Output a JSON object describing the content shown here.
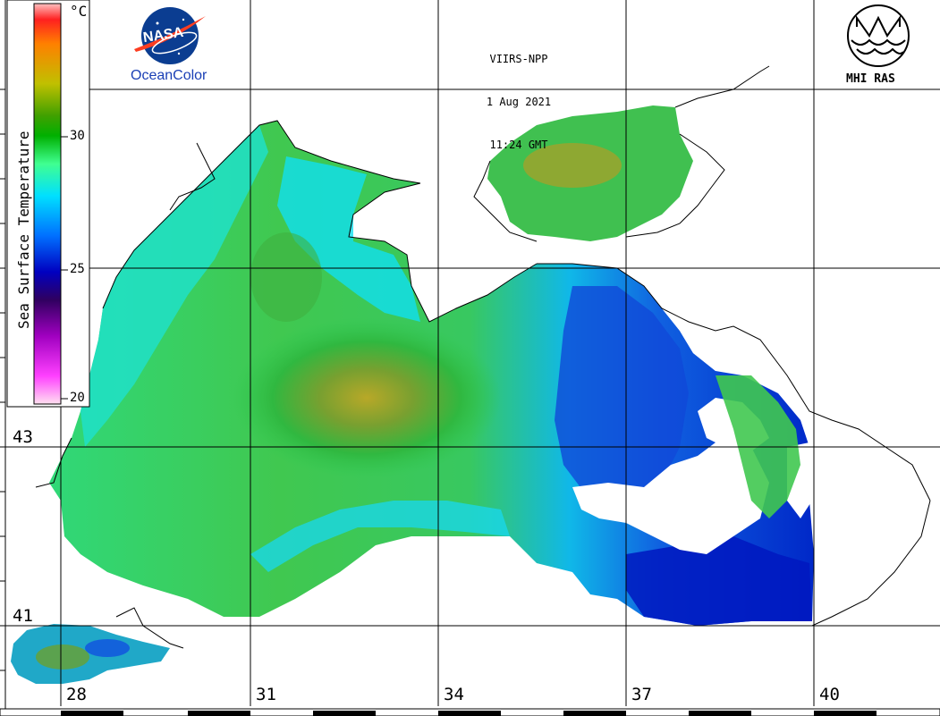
{
  "satellite": {
    "sensor": "VIIRS-NPP",
    "date": "1 Aug 2021",
    "time": "11:24 GMT"
  },
  "logos": {
    "nasa_text": "NASA",
    "oceancolor": "OceanColor",
    "mhi": "MHI RAS"
  },
  "colorbar": {
    "title": "Sea Surface Temperature",
    "unit": "°C",
    "ticks": [
      "30",
      "25",
      "20"
    ],
    "range": [
      20,
      35
    ],
    "colors": [
      "#ffe0f0",
      "#ff40ff",
      "#a000c0",
      "#300060",
      "#0000c0",
      "#0070ff",
      "#00e0ff",
      "#40ff90",
      "#00b000",
      "#40a000",
      "#c0c000",
      "#ff8000",
      "#ff2020",
      "#ffc0c0"
    ]
  },
  "grid": {
    "longitudes": [
      "28",
      "31",
      "34",
      "37",
      "40"
    ],
    "latitudes": [
      "43",
      "41"
    ]
  },
  "palette": {
    "land": "#ffffff",
    "coast": "#000000",
    "cool": "#0020c0",
    "mid": "#00d8f0",
    "warm": "#20c040",
    "hot": "#a8a020"
  }
}
